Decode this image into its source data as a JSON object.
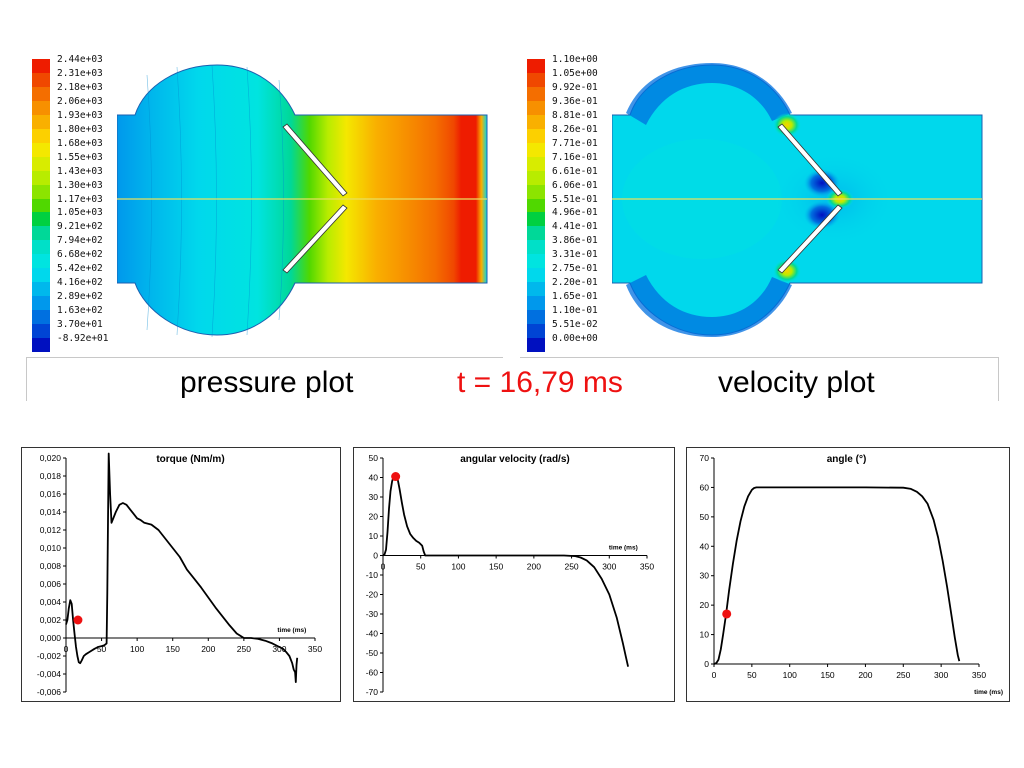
{
  "cfd": {
    "pressure": {
      "legend": [
        "2.44e+03",
        "2.31e+03",
        "2.18e+03",
        "2.06e+03",
        "1.93e+03",
        "1.80e+03",
        "1.68e+03",
        "1.55e+03",
        "1.43e+03",
        "1.30e+03",
        "1.17e+03",
        "1.05e+03",
        "9.21e+02",
        "7.94e+02",
        "6.68e+02",
        "5.42e+02",
        "4.16e+02",
        "2.89e+02",
        "1.63e+02",
        "3.70e+01",
        "-8.92e+01"
      ]
    },
    "velocity": {
      "legend": [
        "1.10e+00",
        "1.05e+00",
        "9.92e-01",
        "9.36e-01",
        "8.81e-01",
        "8.26e-01",
        "7.71e-01",
        "7.16e-01",
        "6.61e-01",
        "6.06e-01",
        "5.51e-01",
        "4.96e-01",
        "4.41e-01",
        "3.86e-01",
        "3.31e-01",
        "2.75e-01",
        "2.20e-01",
        "1.65e-01",
        "1.10e-01",
        "5.51e-02",
        "0.00e+00"
      ]
    },
    "colormap": [
      "#ee1c00",
      "#f04800",
      "#f46e00",
      "#f79000",
      "#f9b000",
      "#fcd000",
      "#f4e800",
      "#d8ec00",
      "#b8ec00",
      "#8ce400",
      "#50d800",
      "#00d040",
      "#00d898",
      "#00e0c8",
      "#00e4e0",
      "#00d8ec",
      "#00b8ec",
      "#0098ec",
      "#0070e0",
      "#0044d4",
      "#0010c0"
    ]
  },
  "captions": {
    "pressure": "pressure plot",
    "time": "t = 16,79 ms",
    "velocity": "velocity plot"
  },
  "colors": {
    "marker": "#ee1111",
    "line": "#000000",
    "time_text": "#ee1111"
  },
  "chart_data": [
    {
      "type": "line",
      "title": "torque (Nm/m)",
      "xlabel": "time (ms)",
      "xlim": [
        0,
        350
      ],
      "ylim": [
        -0.006,
        0.02
      ],
      "xticks": [
        0,
        50,
        100,
        150,
        200,
        250,
        300,
        350
      ],
      "yticks": [
        -0.006,
        -0.004,
        -0.002,
        0.0,
        0.002,
        0.004,
        0.006,
        0.008,
        0.01,
        0.012,
        0.014,
        0.016,
        0.018,
        0.02
      ],
      "ytick_labels": [
        "-0,006",
        "-0,004",
        "-0,002",
        "0,000",
        "0,002",
        "0,004",
        "0,006",
        "0,008",
        "0,010",
        "0,012",
        "0,014",
        "0,016",
        "0,018",
        "0,020"
      ],
      "x": [
        0,
        2,
        4,
        6,
        8,
        10,
        12,
        14,
        16,
        18,
        20,
        22,
        25,
        28,
        32,
        36,
        40,
        45,
        50,
        54,
        57,
        58,
        59,
        60,
        62,
        64,
        70,
        75,
        80,
        85,
        90,
        95,
        100,
        105,
        110,
        120,
        130,
        140,
        150,
        160,
        170,
        180,
        190,
        200,
        210,
        220,
        230,
        240,
        250,
        255,
        260,
        270,
        280,
        290,
        300,
        305,
        310,
        314,
        318,
        320,
        322,
        323,
        324,
        325
      ],
      "y": [
        0.0015,
        0.002,
        0.0033,
        0.0042,
        0.0038,
        0.002,
        0.0005,
        -0.001,
        -0.002,
        -0.0027,
        -0.0028,
        -0.0025,
        -0.002,
        -0.0018,
        -0.0016,
        -0.0014,
        -0.0012,
        -0.001,
        -0.0009,
        -0.0008,
        -0.0006,
        0.005,
        0.013,
        0.0205,
        0.016,
        0.0128,
        0.014,
        0.0148,
        0.015,
        0.0148,
        0.0143,
        0.0138,
        0.0133,
        0.0131,
        0.0128,
        0.0126,
        0.012,
        0.011,
        0.01,
        0.009,
        0.0076,
        0.0066,
        0.0056,
        0.0045,
        0.0034,
        0.0024,
        0.0014,
        0.0005,
        0.0,
        0.0,
        0.0,
        -0.0001,
        -0.0003,
        -0.0006,
        -0.001,
        -0.0012,
        -0.0016,
        -0.002,
        -0.0028,
        -0.0035,
        -0.0038,
        -0.0049,
        -0.003,
        -0.0022
      ],
      "marker": {
        "x": 16.79,
        "y": 0.002
      }
    },
    {
      "type": "line",
      "title": "angular velocity (rad/s)",
      "xlabel": "time (ms)",
      "xlim": [
        0,
        350
      ],
      "ylim": [
        -70,
        50
      ],
      "xticks": [
        0,
        50,
        100,
        150,
        200,
        250,
        300,
        350
      ],
      "yticks": [
        -70,
        -60,
        -50,
        -40,
        -30,
        -20,
        -10,
        0,
        10,
        20,
        30,
        40,
        50
      ],
      "x": [
        0,
        2,
        4,
        6,
        8,
        10,
        12,
        14,
        16,
        18,
        20,
        22,
        25,
        28,
        32,
        36,
        40,
        44,
        48,
        52,
        54,
        56,
        60,
        80,
        120,
        160,
        200,
        240,
        255,
        262,
        270,
        280,
        290,
        300,
        310,
        318,
        322,
        325
      ],
      "y": [
        0,
        0.5,
        3,
        12,
        24,
        33,
        38,
        40.5,
        41,
        40.5,
        38,
        34,
        27,
        21,
        15,
        11,
        9,
        7.5,
        6.5,
        5,
        2,
        0,
        0,
        0,
        0,
        0,
        0,
        0,
        -0.3,
        -1,
        -2.5,
        -6,
        -12,
        -20,
        -32,
        -45,
        -52,
        -57
      ],
      "marker": {
        "x": 16.79,
        "y": 40.5
      }
    },
    {
      "type": "line",
      "title": "angle (°)",
      "xlabel": "time (ms)",
      "xlim": [
        0,
        350
      ],
      "ylim": [
        0,
        70
      ],
      "xticks": [
        0,
        50,
        100,
        150,
        200,
        250,
        300,
        350
      ],
      "yticks": [
        0,
        10,
        20,
        30,
        40,
        50,
        60,
        70
      ],
      "x": [
        0,
        3,
        6,
        9,
        12,
        16,
        20,
        25,
        30,
        35,
        40,
        45,
        50,
        53,
        56,
        100,
        200,
        250,
        260,
        268,
        275,
        282,
        290,
        296,
        302,
        308,
        314,
        318,
        322,
        324
      ],
      "y": [
        0,
        0.3,
        1.5,
        5,
        10,
        17,
        25,
        34,
        42,
        48.5,
        53.5,
        57,
        59.2,
        59.8,
        60,
        60,
        60,
        59.9,
        59.5,
        58.5,
        57,
        54.5,
        49,
        43,
        35,
        26,
        16,
        9,
        3,
        1
      ],
      "marker": {
        "x": 16.79,
        "y": 17
      }
    }
  ]
}
